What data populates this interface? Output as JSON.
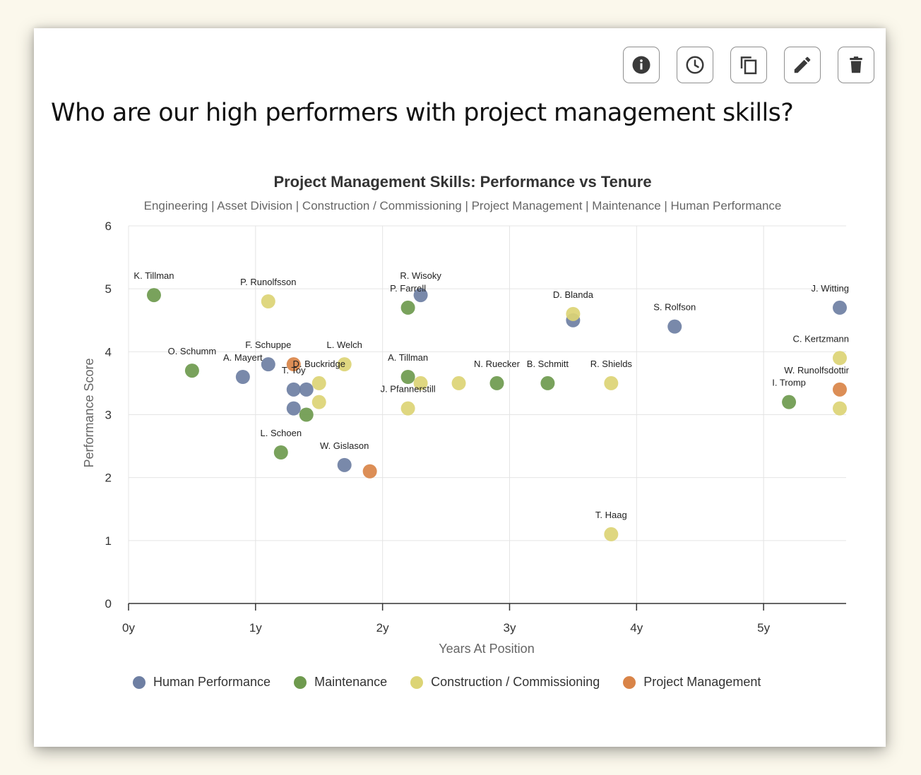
{
  "question": "Who are our high performers with project management skills?",
  "toolbar": {
    "info_icon": "info-icon",
    "history_icon": "clock-icon",
    "copy_icon": "copy-icon",
    "edit_icon": "pencil-icon",
    "delete_icon": "trash-icon"
  },
  "chart_data": {
    "type": "scatter",
    "title": "Project Management Skills: Performance vs Tenure",
    "subtitle": "Engineering | Asset Division | Construction / Commissioning | Project Management | Maintenance | Human Performance",
    "xlabel": "Years At Position",
    "ylabel": "Performance Score",
    "xlim": [
      0,
      5.65
    ],
    "ylim": [
      0,
      6
    ],
    "x_ticks": [
      0,
      1,
      2,
      3,
      4,
      5
    ],
    "x_tick_labels": [
      "0y",
      "1y",
      "2y",
      "3y",
      "4y",
      "5y"
    ],
    "y_ticks": [
      0,
      1,
      2,
      3,
      4,
      5,
      6
    ],
    "y_tick_labels": [
      "0",
      "1",
      "2",
      "3",
      "4",
      "5",
      "6"
    ],
    "grid": true,
    "legend_position": "bottom",
    "series": [
      {
        "name": "Human Performance",
        "color": "#6e7fa3",
        "points": [
          {
            "x": 0.9,
            "y": 3.6,
            "label": "A. Mayert"
          },
          {
            "x": 1.1,
            "y": 3.8,
            "label": "F. Schuppe"
          },
          {
            "x": 1.3,
            "y": 3.4,
            "label": "T. Toy"
          },
          {
            "x": 1.4,
            "y": 3.4,
            "label": ""
          },
          {
            "x": 1.3,
            "y": 3.1,
            "label": ""
          },
          {
            "x": 1.7,
            "y": 2.2,
            "label": "W. Gislason"
          },
          {
            "x": 2.3,
            "y": 4.9,
            "label": "R. Wisoky"
          },
          {
            "x": 3.5,
            "y": 4.5,
            "label": ""
          },
          {
            "x": 4.3,
            "y": 4.4,
            "label": "S. Rolfson"
          },
          {
            "x": 5.6,
            "y": 4.7,
            "label": "J. Witting"
          }
        ]
      },
      {
        "name": "Maintenance",
        "color": "#6e9a4e",
        "points": [
          {
            "x": 0.2,
            "y": 4.9,
            "label": "K. Tillman"
          },
          {
            "x": 0.5,
            "y": 3.7,
            "label": "O. Schumm"
          },
          {
            "x": 1.2,
            "y": 2.4,
            "label": "L. Schoen"
          },
          {
            "x": 1.4,
            "y": 3.0,
            "label": ""
          },
          {
            "x": 2.2,
            "y": 4.7,
            "label": "P. Farrell"
          },
          {
            "x": 2.2,
            "y": 3.6,
            "label": "A. Tillman"
          },
          {
            "x": 2.9,
            "y": 3.5,
            "label": "N. Ruecker"
          },
          {
            "x": 3.3,
            "y": 3.5,
            "label": "B. Schmitt"
          },
          {
            "x": 5.2,
            "y": 3.2,
            "label": "I. Tromp"
          }
        ]
      },
      {
        "name": "Construction / Commissioning",
        "color": "#dcd475",
        "points": [
          {
            "x": 1.1,
            "y": 4.8,
            "label": "P. Runolfsson"
          },
          {
            "x": 1.5,
            "y": 3.5,
            "label": "D. Buckridge"
          },
          {
            "x": 1.5,
            "y": 3.2,
            "label": ""
          },
          {
            "x": 1.7,
            "y": 3.8,
            "label": "L. Welch"
          },
          {
            "x": 2.2,
            "y": 3.1,
            "label": "J. Pfannerstill"
          },
          {
            "x": 2.3,
            "y": 3.5,
            "label": ""
          },
          {
            "x": 2.6,
            "y": 3.5,
            "label": ""
          },
          {
            "x": 3.5,
            "y": 4.6,
            "label": "D. Blanda"
          },
          {
            "x": 3.8,
            "y": 3.5,
            "label": "R. Shields"
          },
          {
            "x": 3.8,
            "y": 1.1,
            "label": "T. Haag"
          },
          {
            "x": 5.6,
            "y": 3.9,
            "label": "C. Kertzmann"
          },
          {
            "x": 5.6,
            "y": 3.1,
            "label": ""
          }
        ]
      },
      {
        "name": "Project Management",
        "color": "#d98448",
        "points": [
          {
            "x": 1.3,
            "y": 3.8,
            "label": ""
          },
          {
            "x": 1.9,
            "y": 2.1,
            "label": ""
          },
          {
            "x": 5.6,
            "y": 3.4,
            "label": "W. Runolfsdottir"
          }
        ]
      }
    ]
  }
}
